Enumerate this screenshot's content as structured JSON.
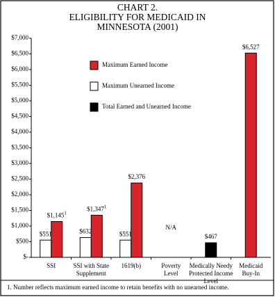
{
  "chart_data": {
    "type": "bar",
    "title": [
      "CHART 2.",
      "ELIGIBILITY FOR MEDICAID IN",
      "MINNESOTA (2001)"
    ],
    "categories": [
      [
        "SSI"
      ],
      [
        "SSI with State",
        "Supplement"
      ],
      [
        "1619(b)"
      ],
      [
        "Poverty",
        "Level"
      ],
      [
        "Medically Needy",
        "Protected Income",
        "Level"
      ],
      [
        "Medicaid",
        "Buy-In"
      ]
    ],
    "series": [
      {
        "name": "Maximum Unearned Income",
        "color": "#ffffff",
        "values": [
          551,
          632,
          551,
          null,
          null,
          null
        ],
        "value_labels": [
          "$551",
          "$632",
          "$551",
          null,
          null,
          null
        ]
      },
      {
        "name": "Maximum Earned Income",
        "color": "#d8242b",
        "values": [
          1145,
          1347,
          2376,
          null,
          null,
          6527
        ],
        "value_labels": [
          "$1,145",
          "$1,347",
          "$2,376",
          null,
          null,
          "$6,527"
        ],
        "note_marks": [
          "1",
          "1",
          null,
          null,
          null,
          null
        ]
      },
      {
        "name": "Total Earned and Unearned Income",
        "color": "#000000",
        "values": [
          null,
          null,
          null,
          null,
          467,
          null
        ],
        "value_labels": [
          null,
          null,
          null,
          null,
          "$467",
          null
        ]
      }
    ],
    "legend_order": [
      1,
      0,
      2
    ],
    "annotations": [
      {
        "category": 3,
        "text": "N/A"
      }
    ],
    "ylim": [
      0,
      7000
    ],
    "yticks": [
      {
        "value": 0,
        "label": "$-"
      },
      {
        "value": 500,
        "label": "$500"
      },
      {
        "value": 1000,
        "label": "$1,000"
      },
      {
        "value": 1500,
        "label": "$1,500"
      },
      {
        "value": 2000,
        "label": "$2,000"
      },
      {
        "value": 2500,
        "label": "$2,500"
      },
      {
        "value": 3000,
        "label": "$3,000"
      },
      {
        "value": 3500,
        "label": "$3,500"
      },
      {
        "value": 4000,
        "label": "$4,000"
      },
      {
        "value": 4500,
        "label": "$4,500"
      },
      {
        "value": 5000,
        "label": "$5,000"
      },
      {
        "value": 5500,
        "label": "$5,500"
      },
      {
        "value": 6000,
        "label": "$6,000"
      },
      {
        "value": 6500,
        "label": "$6,500"
      },
      {
        "value": 7000,
        "label": "$7,000"
      }
    ],
    "footnote": "1.  Number reflects maximum earned income to retain benefits with no unearned income."
  }
}
